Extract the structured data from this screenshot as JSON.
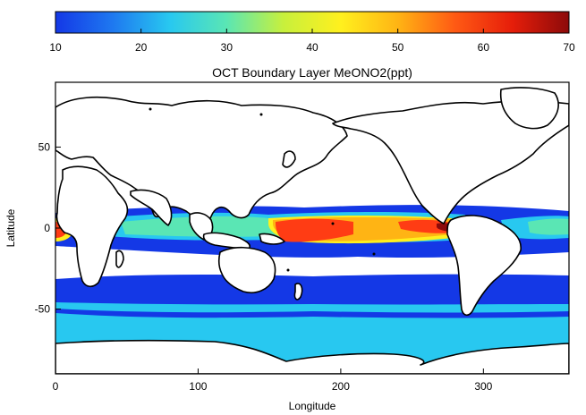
{
  "colorbar": {
    "ticks": [
      "10",
      "20",
      "30",
      "40",
      "50",
      "60",
      "70"
    ],
    "min": 10,
    "max": 70,
    "stops": [
      "#1438e6",
      "#1e78f0",
      "#28c8f0",
      "#5ae6b4",
      "#c8f03c",
      "#fff01e",
      "#ffb414",
      "#ff5a14",
      "#e61e0a",
      "#8c0a0a"
    ]
  },
  "title": "OCT Boundary Layer MeONO2(ppt)",
  "axes": {
    "xlabel": "Longitude",
    "ylabel": "Latitude",
    "xticks": [
      "0",
      "100",
      "200",
      "300"
    ],
    "yticks": [
      "50",
      "0",
      "-50"
    ],
    "xlim": [
      0,
      360
    ],
    "ylim": [
      -90,
      90
    ]
  },
  "colors": {
    "background": "#ffffff",
    "land": "#ffffff",
    "coastline": "#000000",
    "level_10": "#1438e6",
    "level_20": "#28c8f0",
    "level_30": "#5ae6b4",
    "level_40": "#fff01e",
    "level_50": "#ffb414",
    "level_60": "#ff3c14",
    "level_70": "#8c0a0a"
  }
}
